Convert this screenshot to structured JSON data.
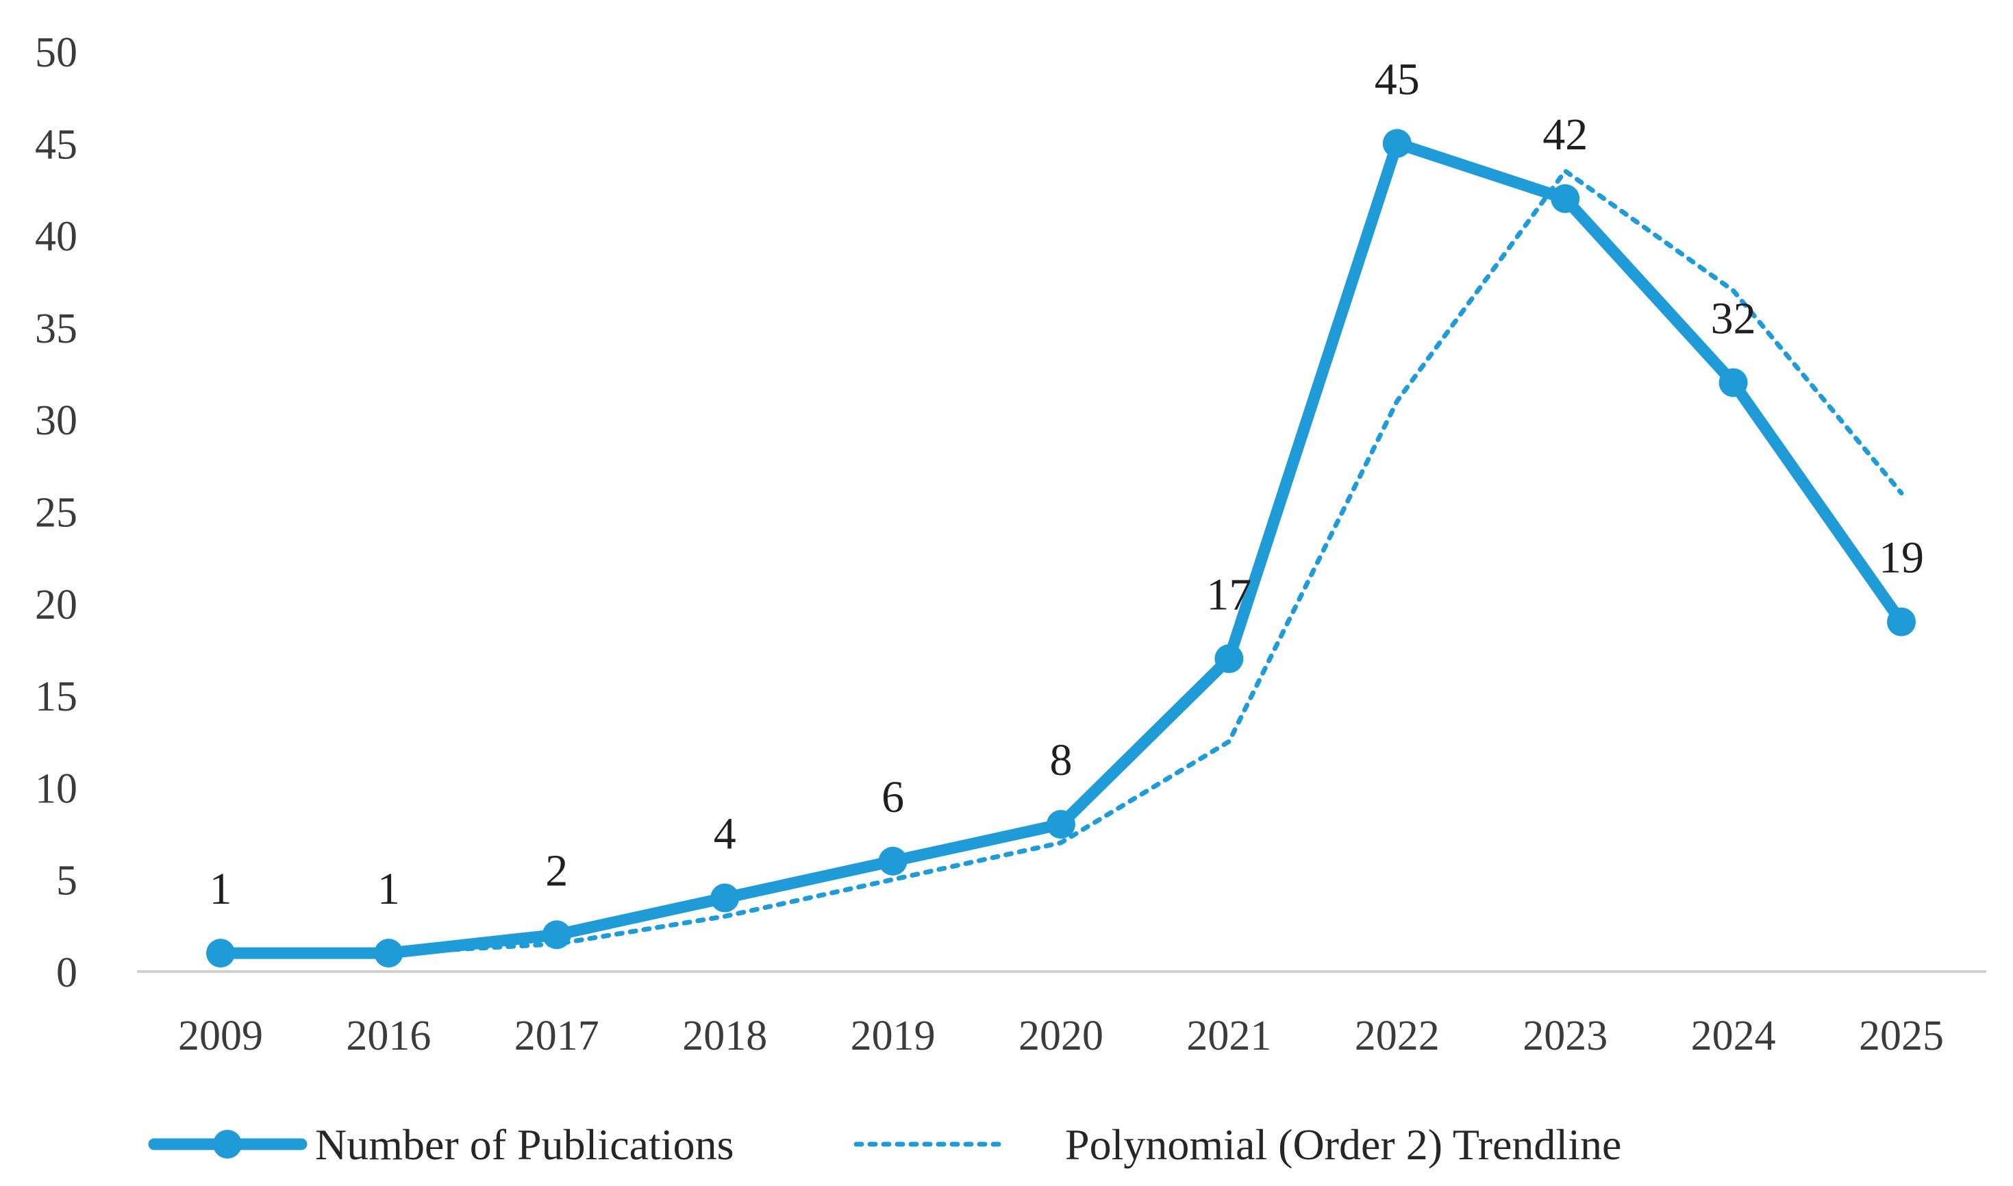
{
  "chart_data": {
    "type": "line",
    "title": "",
    "xlabel": "",
    "ylabel": "",
    "categories": [
      "2009",
      "2016",
      "2017",
      "2018",
      "2019",
      "2020",
      "2021",
      "2022",
      "2023",
      "2024",
      "2025"
    ],
    "series": [
      {
        "name": "Number of Publications",
        "style": "solid-with-markers",
        "color": "#1F9BD7",
        "values": [
          1,
          1,
          2,
          4,
          6,
          8,
          17,
          45,
          42,
          32,
          19
        ],
        "data_labels": [
          "1",
          "1",
          "2",
          "4",
          "6",
          "8",
          "17",
          "45",
          "42",
          "32",
          "19"
        ]
      },
      {
        "name": "Polynomial (Order 2) Trendline",
        "style": "dotted",
        "color": "#1F9BD7",
        "values": [
          1,
          1,
          1.5,
          3,
          5,
          7,
          12.5,
          31,
          43.5,
          37,
          26
        ]
      }
    ],
    "ylim": [
      0,
      50
    ],
    "yticks": [
      "0",
      "5",
      "10",
      "15",
      "20",
      "25",
      "30",
      "35",
      "40",
      "45",
      "50"
    ],
    "grid": false,
    "legend_position": "bottom"
  }
}
